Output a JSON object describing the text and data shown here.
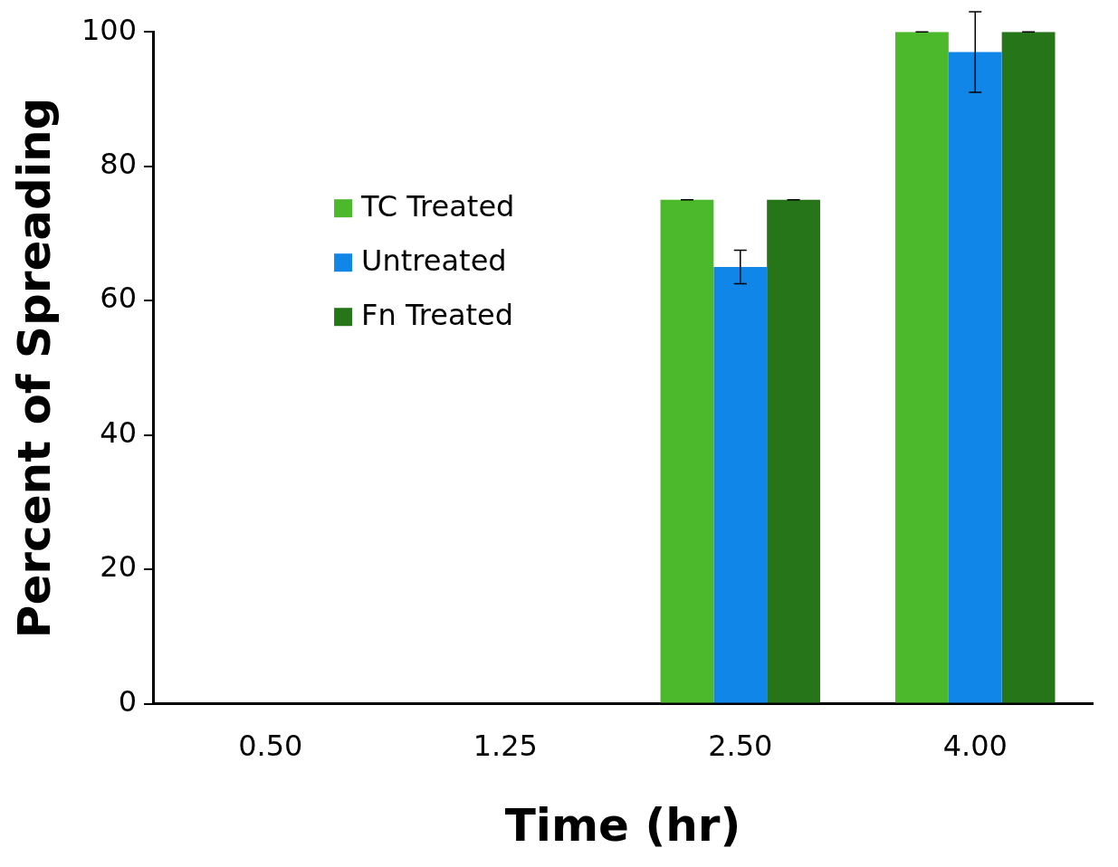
{
  "chart_data": {
    "type": "bar",
    "xlabel": "Time (hr)",
    "ylabel": "Percent of Spreading",
    "categories": [
      "0.50",
      "1.25",
      "2.50",
      "4.00"
    ],
    "series": [
      {
        "name": "TC Treated",
        "color": "#4cb82c",
        "values": [
          0,
          0,
          75,
          100
        ],
        "errors": [
          null,
          null,
          0,
          0
        ]
      },
      {
        "name": "Untreated",
        "color": "#0f86e8",
        "values": [
          0,
          0,
          65,
          97
        ],
        "errors": [
          null,
          null,
          2.5,
          6
        ]
      },
      {
        "name": "Fn Treated",
        "color": "#267519",
        "values": [
          0,
          0,
          75,
          100
        ],
        "errors": [
          null,
          null,
          0,
          0
        ]
      }
    ],
    "ylim": [
      0,
      100
    ],
    "yticks": [
      0,
      20,
      40,
      60,
      80,
      100
    ],
    "grid": false,
    "legend": "top left"
  }
}
